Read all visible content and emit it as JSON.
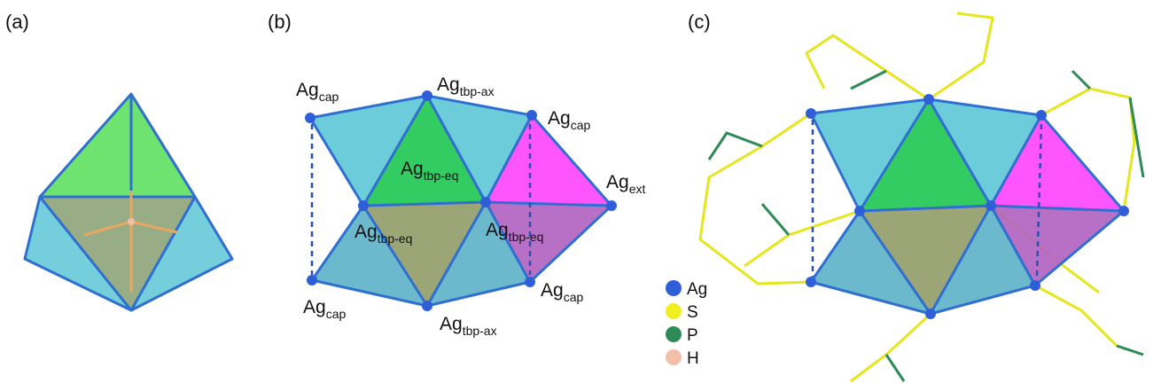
{
  "panels": [
    {
      "label": "(a)"
    },
    {
      "label": "(b)",
      "atom_labels": [
        {
          "element": "Ag",
          "site": "cap"
        },
        {
          "element": "Ag",
          "site": "tbp-ax"
        },
        {
          "element": "Ag",
          "site": "cap"
        },
        {
          "element": "Ag",
          "site": "tbp-eq"
        },
        {
          "element": "Ag",
          "site": "ext"
        },
        {
          "element": "Ag",
          "site": "tbp-eq"
        },
        {
          "element": "Ag",
          "site": "tbp-eq"
        },
        {
          "element": "Ag",
          "site": "cap"
        },
        {
          "element": "Ag",
          "site": "tbp-ax"
        },
        {
          "element": "Ag",
          "site": "cap"
        }
      ]
    },
    {
      "label": "(c)"
    }
  ],
  "legend": [
    {
      "label": "Ag",
      "color": "#2f5fd8"
    },
    {
      "label": "S",
      "color": "#f0f020"
    },
    {
      "label": "P",
      "color": "#2e8b57"
    },
    {
      "label": "H",
      "color": "#f2c0a8"
    }
  ]
}
